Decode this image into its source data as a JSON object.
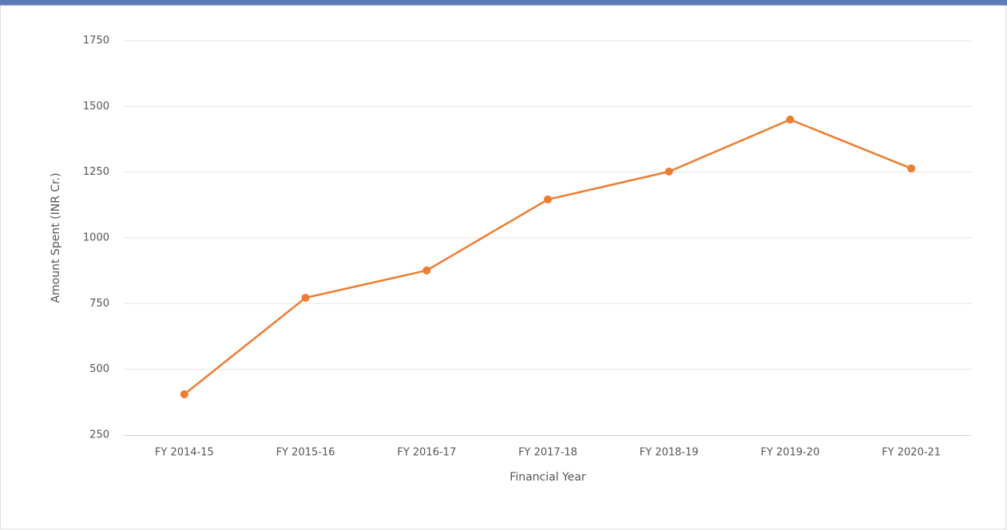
{
  "chart_data": {
    "type": "line",
    "x_label": "Financial Year",
    "y_label": "Amount Spent (INR Cr.)",
    "categories": [
      "FY 2014-15",
      "FY 2015-16",
      "FY 2016-17",
      "FY 2017-18",
      "FY 2018-19",
      "FY 2019-20",
      "FY 2020-21"
    ],
    "series": [
      {
        "name": "Amount Spent",
        "color": "#ed7d31",
        "values": [
          405,
          772,
          876,
          1146,
          1252,
          1450,
          1264
        ]
      }
    ],
    "ylim": [
      250,
      1750
    ],
    "yticks": [
      250,
      500,
      750,
      1000,
      1250,
      1500,
      1750
    ],
    "grid": true
  }
}
